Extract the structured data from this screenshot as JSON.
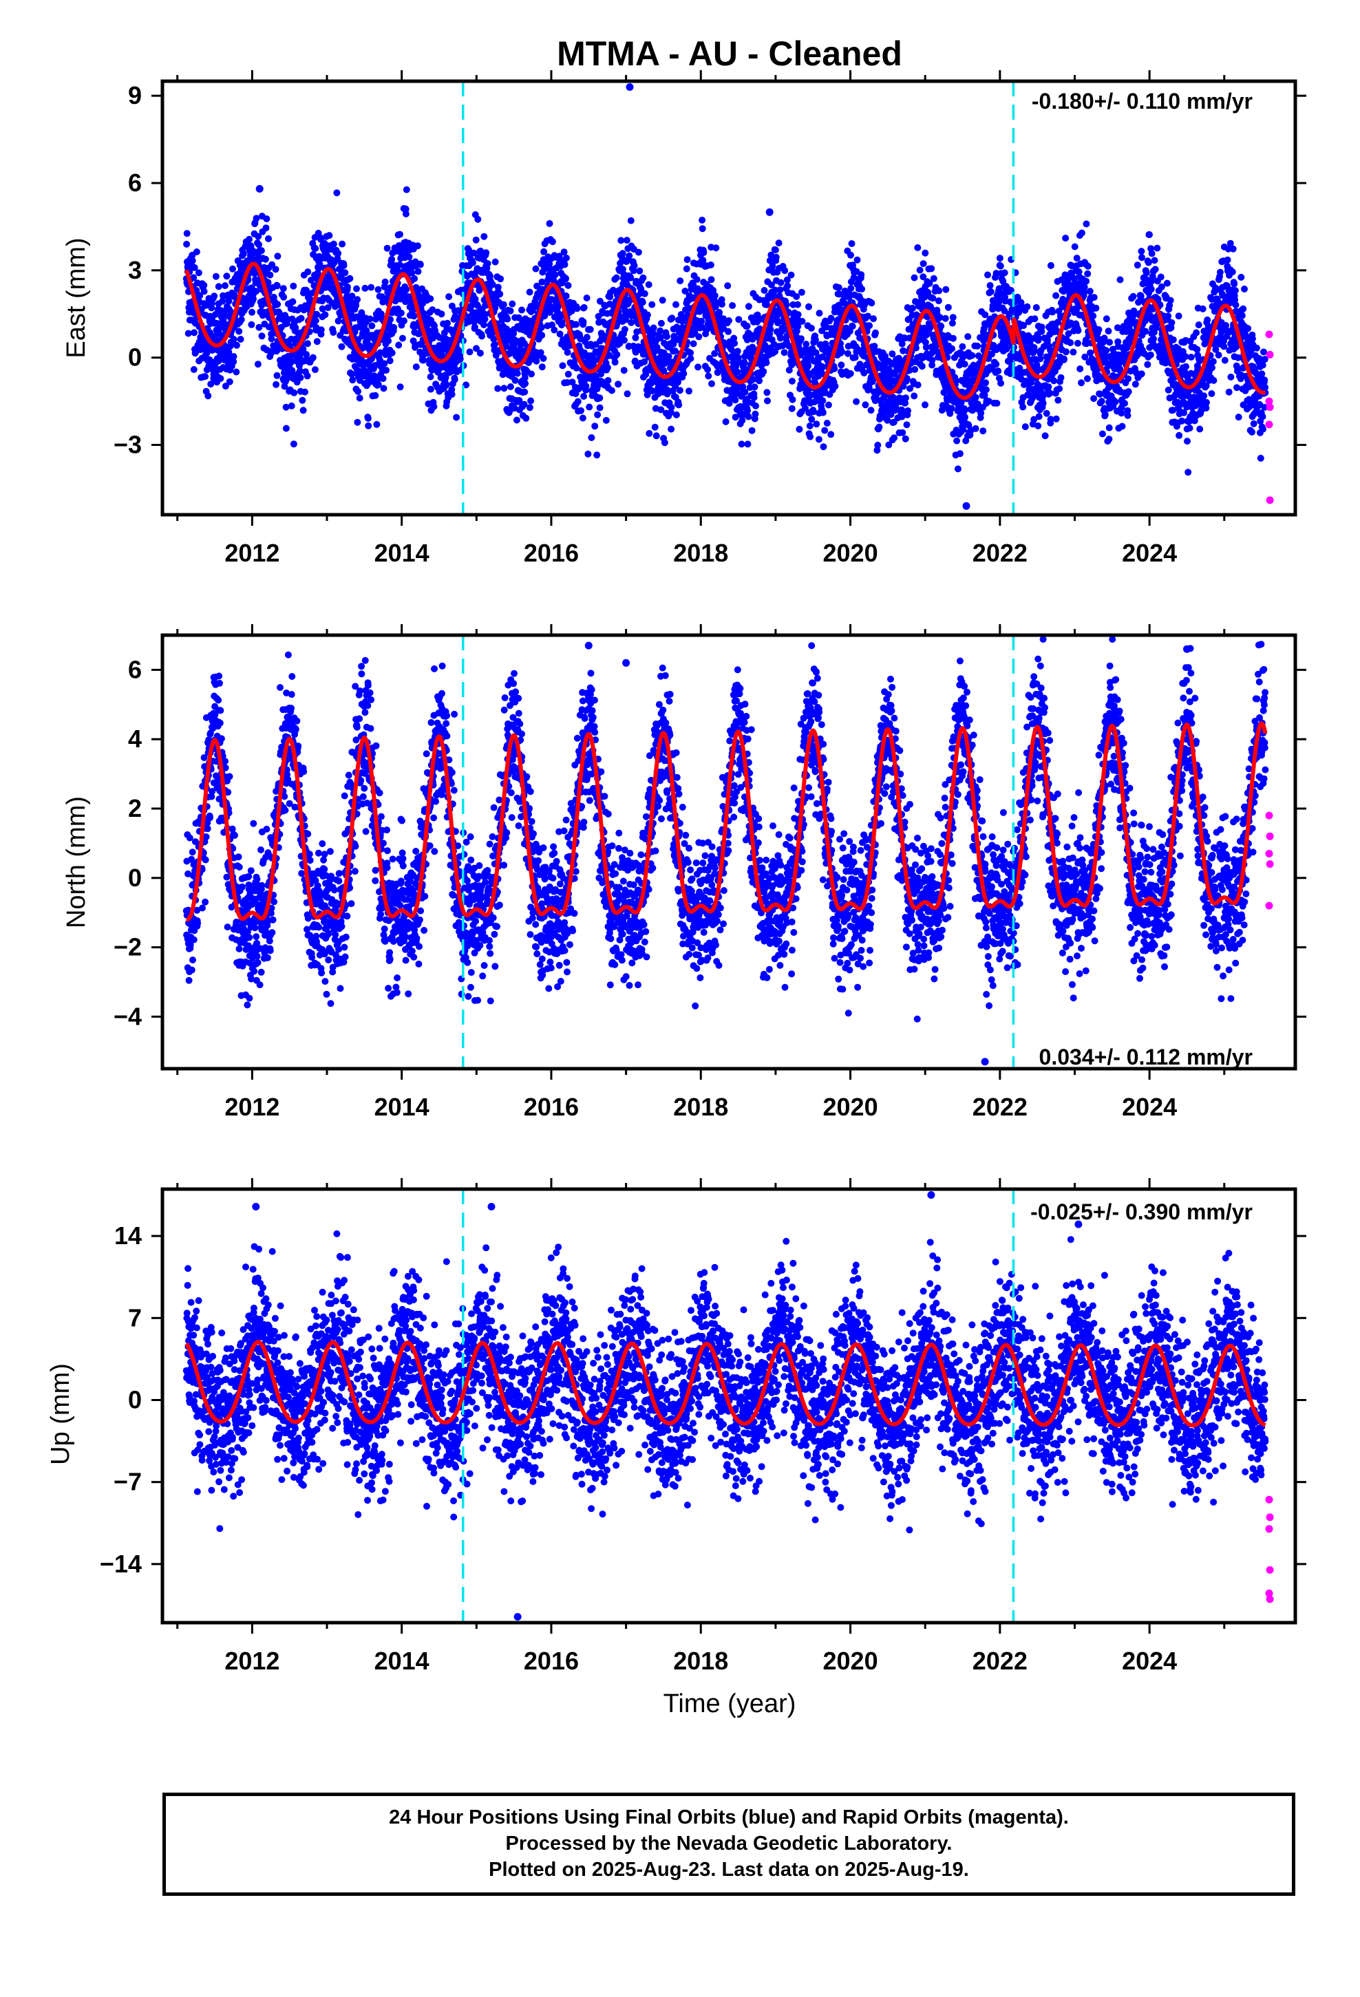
{
  "title": "MTMA  - AU - Cleaned",
  "xlabel": "Time (year)",
  "colors": {
    "final": "#0000ff",
    "rapid": "#ff00ff",
    "model": "#ff0000",
    "steps": "#00e5ee"
  },
  "footer": {
    "line1": "24 Hour Positions Using Final Orbits (blue) and Rapid Orbits (magenta).",
    "line2": "Processed by the Nevada Geodetic Laboratory.",
    "line3": "Plotted on 2025-Aug-23. Last data on 2025-Aug-19."
  },
  "chart_data": [
    {
      "type": "scatter",
      "ylabel": "East (mm)",
      "rate_label": "-0.180+/- 0.110 mm/yr",
      "rate_position": "top-right",
      "xlim": [
        2010.8,
        2025.95
      ],
      "ylim": [
        -5.4,
        9.5
      ],
      "xticks": [
        2012,
        2014,
        2016,
        2018,
        2020,
        2022,
        2024
      ],
      "yticks": [
        9,
        6,
        3,
        0,
        -3
      ],
      "ytick_labels": [
        "9",
        "6",
        "3",
        "0",
        "−3"
      ],
      "step_lines": [
        2014.82,
        2022.18
      ],
      "model": {
        "offset0": 0.55,
        "trend_per_yr": -0.18,
        "annual_amp": 1.45,
        "semiannual_amp": 0.15,
        "phase_peak": 2012.02,
        "noise_sd": 0.95,
        "step_at": 2022.18,
        "step": 0.9
      },
      "rapid_values": [
        0.8,
        0.1,
        -1.5,
        -1.7,
        -2.3,
        -4.9
      ],
      "outliers": [
        [
          2017.05,
          9.3
        ],
        [
          2012.1,
          5.8
        ],
        [
          2014.05,
          5.1
        ],
        [
          2018.92,
          5.0
        ],
        [
          2021.55,
          -5.1
        ]
      ]
    },
    {
      "type": "scatter",
      "ylabel": "North (mm)",
      "rate_label": "0.034+/- 0.112 mm/yr",
      "rate_position": "bottom-right",
      "xlim": [
        2010.8,
        2025.95
      ],
      "ylim": [
        -5.5,
        7.0
      ],
      "xticks": [
        2012,
        2014,
        2016,
        2018,
        2020,
        2022,
        2024
      ],
      "yticks": [
        6,
        4,
        2,
        0,
        -2,
        -4
      ],
      "ytick_labels": [
        "6",
        "4",
        "2",
        "0",
        "−2",
        "−4"
      ],
      "step_lines": [
        2014.82,
        2022.18
      ],
      "model": {
        "offset0": 0.8,
        "trend_per_yr": 0.034,
        "annual_amp": 2.5,
        "semiannual_amp": 0.9,
        "phase_peak": 2011.5,
        "noise_sd": 0.95
      },
      "rapid_values": [
        1.8,
        1.2,
        0.7,
        0.4,
        -0.8
      ],
      "outliers": [
        [
          2016.5,
          6.7
        ],
        [
          2024.5,
          6.6
        ],
        [
          2021.8,
          -5.3
        ],
        [
          2017.0,
          6.2
        ]
      ]
    },
    {
      "type": "scatter",
      "ylabel": "Up (mm)",
      "rate_label": "-0.025+/- 0.390 mm/yr",
      "rate_position": "top-right",
      "xlim": [
        2010.8,
        2025.95
      ],
      "ylim": [
        -19,
        18
      ],
      "xticks": [
        2012,
        2014,
        2016,
        2018,
        2020,
        2022,
        2024
      ],
      "yticks": [
        14,
        7,
        0,
        -7,
        -14
      ],
      "ytick_labels": [
        "14",
        "7",
        "0",
        "−7",
        "−14"
      ],
      "step_lines": [
        2014.82,
        2022.18
      ],
      "model": {
        "offset0": 1.0,
        "trend_per_yr": -0.025,
        "annual_amp": 3.4,
        "semiannual_amp": 0.4,
        "phase_peak": 2012.08,
        "noise_sd": 3.2
      },
      "rapid_values": [
        -8.5,
        -10,
        -11,
        -14.5,
        -16.5,
        -17
      ],
      "outliers": [
        [
          2021.08,
          17.5
        ],
        [
          2015.55,
          -18.5
        ],
        [
          2012.05,
          16.5
        ],
        [
          2015.2,
          16.5
        ],
        [
          2023.05,
          15.0
        ]
      ]
    }
  ]
}
